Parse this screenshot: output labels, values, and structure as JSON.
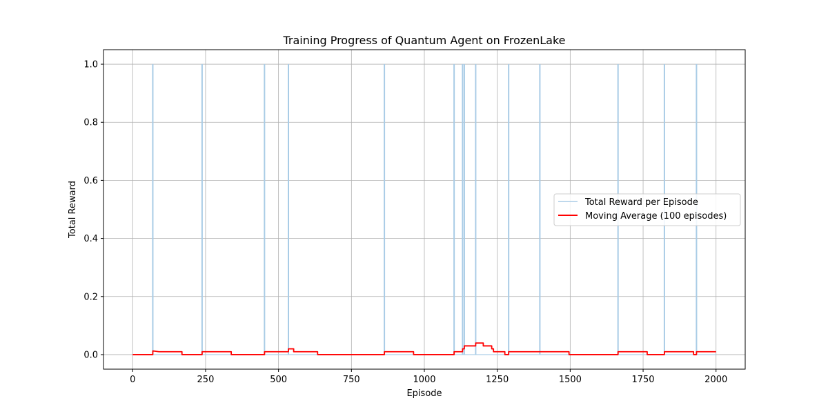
{
  "chart_data": {
    "type": "line",
    "title": "Training Progress of Quantum Agent on FrozenLake",
    "xlabel": "Episode",
    "ylabel": "Total Reward",
    "xlim": [
      -100,
      2100
    ],
    "ylim": [
      -0.05,
      1.05
    ],
    "xticks": [
      0,
      250,
      500,
      750,
      1000,
      1250,
      1500,
      1750,
      2000
    ],
    "yticks": [
      0.0,
      0.2,
      0.4,
      0.6,
      0.8,
      1.0
    ],
    "xtick_labels": [
      "0",
      "250",
      "500",
      "750",
      "1000",
      "1250",
      "1500",
      "1750",
      "2000"
    ],
    "ytick_labels": [
      "0.0",
      "0.2",
      "0.4",
      "0.6",
      "0.8",
      "1.0"
    ],
    "grid": true,
    "legend_position": "center-right",
    "series": [
      {
        "name": "Total Reward per Episode",
        "color": "#a9cce6",
        "kind": "spikes",
        "baseline": 0.0,
        "success_episodes": [
          69,
          238,
          452,
          534,
          863,
          1102,
          1131,
          1137,
          1176,
          1289,
          1396,
          1664,
          1823,
          1933
        ],
        "success_value": 1.0
      },
      {
        "name": "Moving Average (100 episodes)",
        "color": "#ff0000",
        "kind": "line",
        "x": [
          0,
          69,
          69,
          90,
          169,
          169,
          238,
          238,
          338,
          338,
          452,
          452,
          534,
          534,
          552,
          552,
          634,
          634,
          863,
          863,
          963,
          963,
          1102,
          1102,
          1131,
          1131,
          1137,
          1137,
          1176,
          1176,
          1202,
          1202,
          1231,
          1231,
          1237,
          1237,
          1276,
          1276,
          1289,
          1289,
          1396,
          1396,
          1496,
          1496,
          1664,
          1664,
          1764,
          1764,
          1823,
          1823,
          1923,
          1923,
          1933,
          1933,
          2000
        ],
        "y": [
          0.0,
          0.0,
          0.013,
          0.01,
          0.01,
          0.0,
          0.0,
          0.01,
          0.01,
          0.0,
          0.0,
          0.01,
          0.01,
          0.02,
          0.02,
          0.01,
          0.01,
          0.0,
          0.0,
          0.01,
          0.01,
          0.0,
          0.0,
          0.01,
          0.01,
          0.02,
          0.02,
          0.03,
          0.03,
          0.04,
          0.04,
          0.03,
          0.03,
          0.02,
          0.02,
          0.01,
          0.01,
          0.0,
          0.0,
          0.01,
          0.01,
          0.01,
          0.01,
          0.0,
          0.0,
          0.01,
          0.01,
          0.0,
          0.0,
          0.01,
          0.01,
          0.0,
          0.0,
          0.01,
          0.01
        ]
      }
    ]
  }
}
